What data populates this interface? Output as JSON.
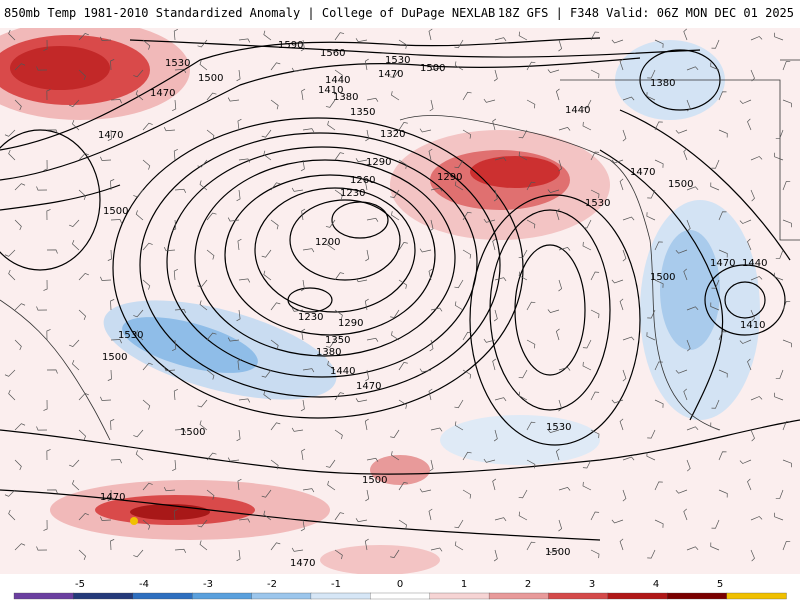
{
  "header": {
    "left_title": "850mb Temp 1981-2010 Standardized Anomaly | College of DuPage NEXLAB",
    "right_title": "18Z GFS | F348 Valid: 06Z MON DEC 01 2025"
  },
  "colorbar": {
    "ticks": [
      "-5",
      "-4",
      "-3",
      "-2",
      "-1",
      "0",
      "1",
      "2",
      "3",
      "4",
      "5"
    ],
    "colors": [
      "#6b3fa0",
      "#243a7a",
      "#2e6fbf",
      "#5aa0dd",
      "#9cc6ec",
      "#d6e6f6",
      "#ffffff",
      "#f6d4d4",
      "#e89a9a",
      "#d44a4a",
      "#b01818",
      "#7a0000",
      "#f0c000"
    ]
  },
  "contour_labels": [
    {
      "text": "1590"
    },
    {
      "text": "1560"
    },
    {
      "text": "1530"
    },
    {
      "text": "1500"
    },
    {
      "text": "1470"
    },
    {
      "text": "1530"
    },
    {
      "text": "1500"
    },
    {
      "text": "1440"
    },
    {
      "text": "1410"
    },
    {
      "text": "1380"
    },
    {
      "text": "1470"
    },
    {
      "text": "1350"
    },
    {
      "text": "1320"
    },
    {
      "text": "1290"
    },
    {
      "text": "1260"
    },
    {
      "text": "1230"
    },
    {
      "text": "1200"
    },
    {
      "text": "1230"
    },
    {
      "text": "1290"
    },
    {
      "text": "1350"
    },
    {
      "text": "1380"
    },
    {
      "text": "1440"
    },
    {
      "text": "1470"
    },
    {
      "text": "1290"
    },
    {
      "text": "1530"
    },
    {
      "text": "1500"
    },
    {
      "text": "1470"
    },
    {
      "text": "1500"
    },
    {
      "text": "1530"
    },
    {
      "text": "1500"
    },
    {
      "text": "1500"
    },
    {
      "text": "1470"
    },
    {
      "text": "1440"
    },
    {
      "text": "1410"
    },
    {
      "text": "1380"
    },
    {
      "text": "1440"
    },
    {
      "text": "1470"
    },
    {
      "text": "1500"
    },
    {
      "text": "1530"
    },
    {
      "text": "1500"
    },
    {
      "text": "1500"
    },
    {
      "text": "1470"
    },
    {
      "text": "1470"
    }
  ]
}
